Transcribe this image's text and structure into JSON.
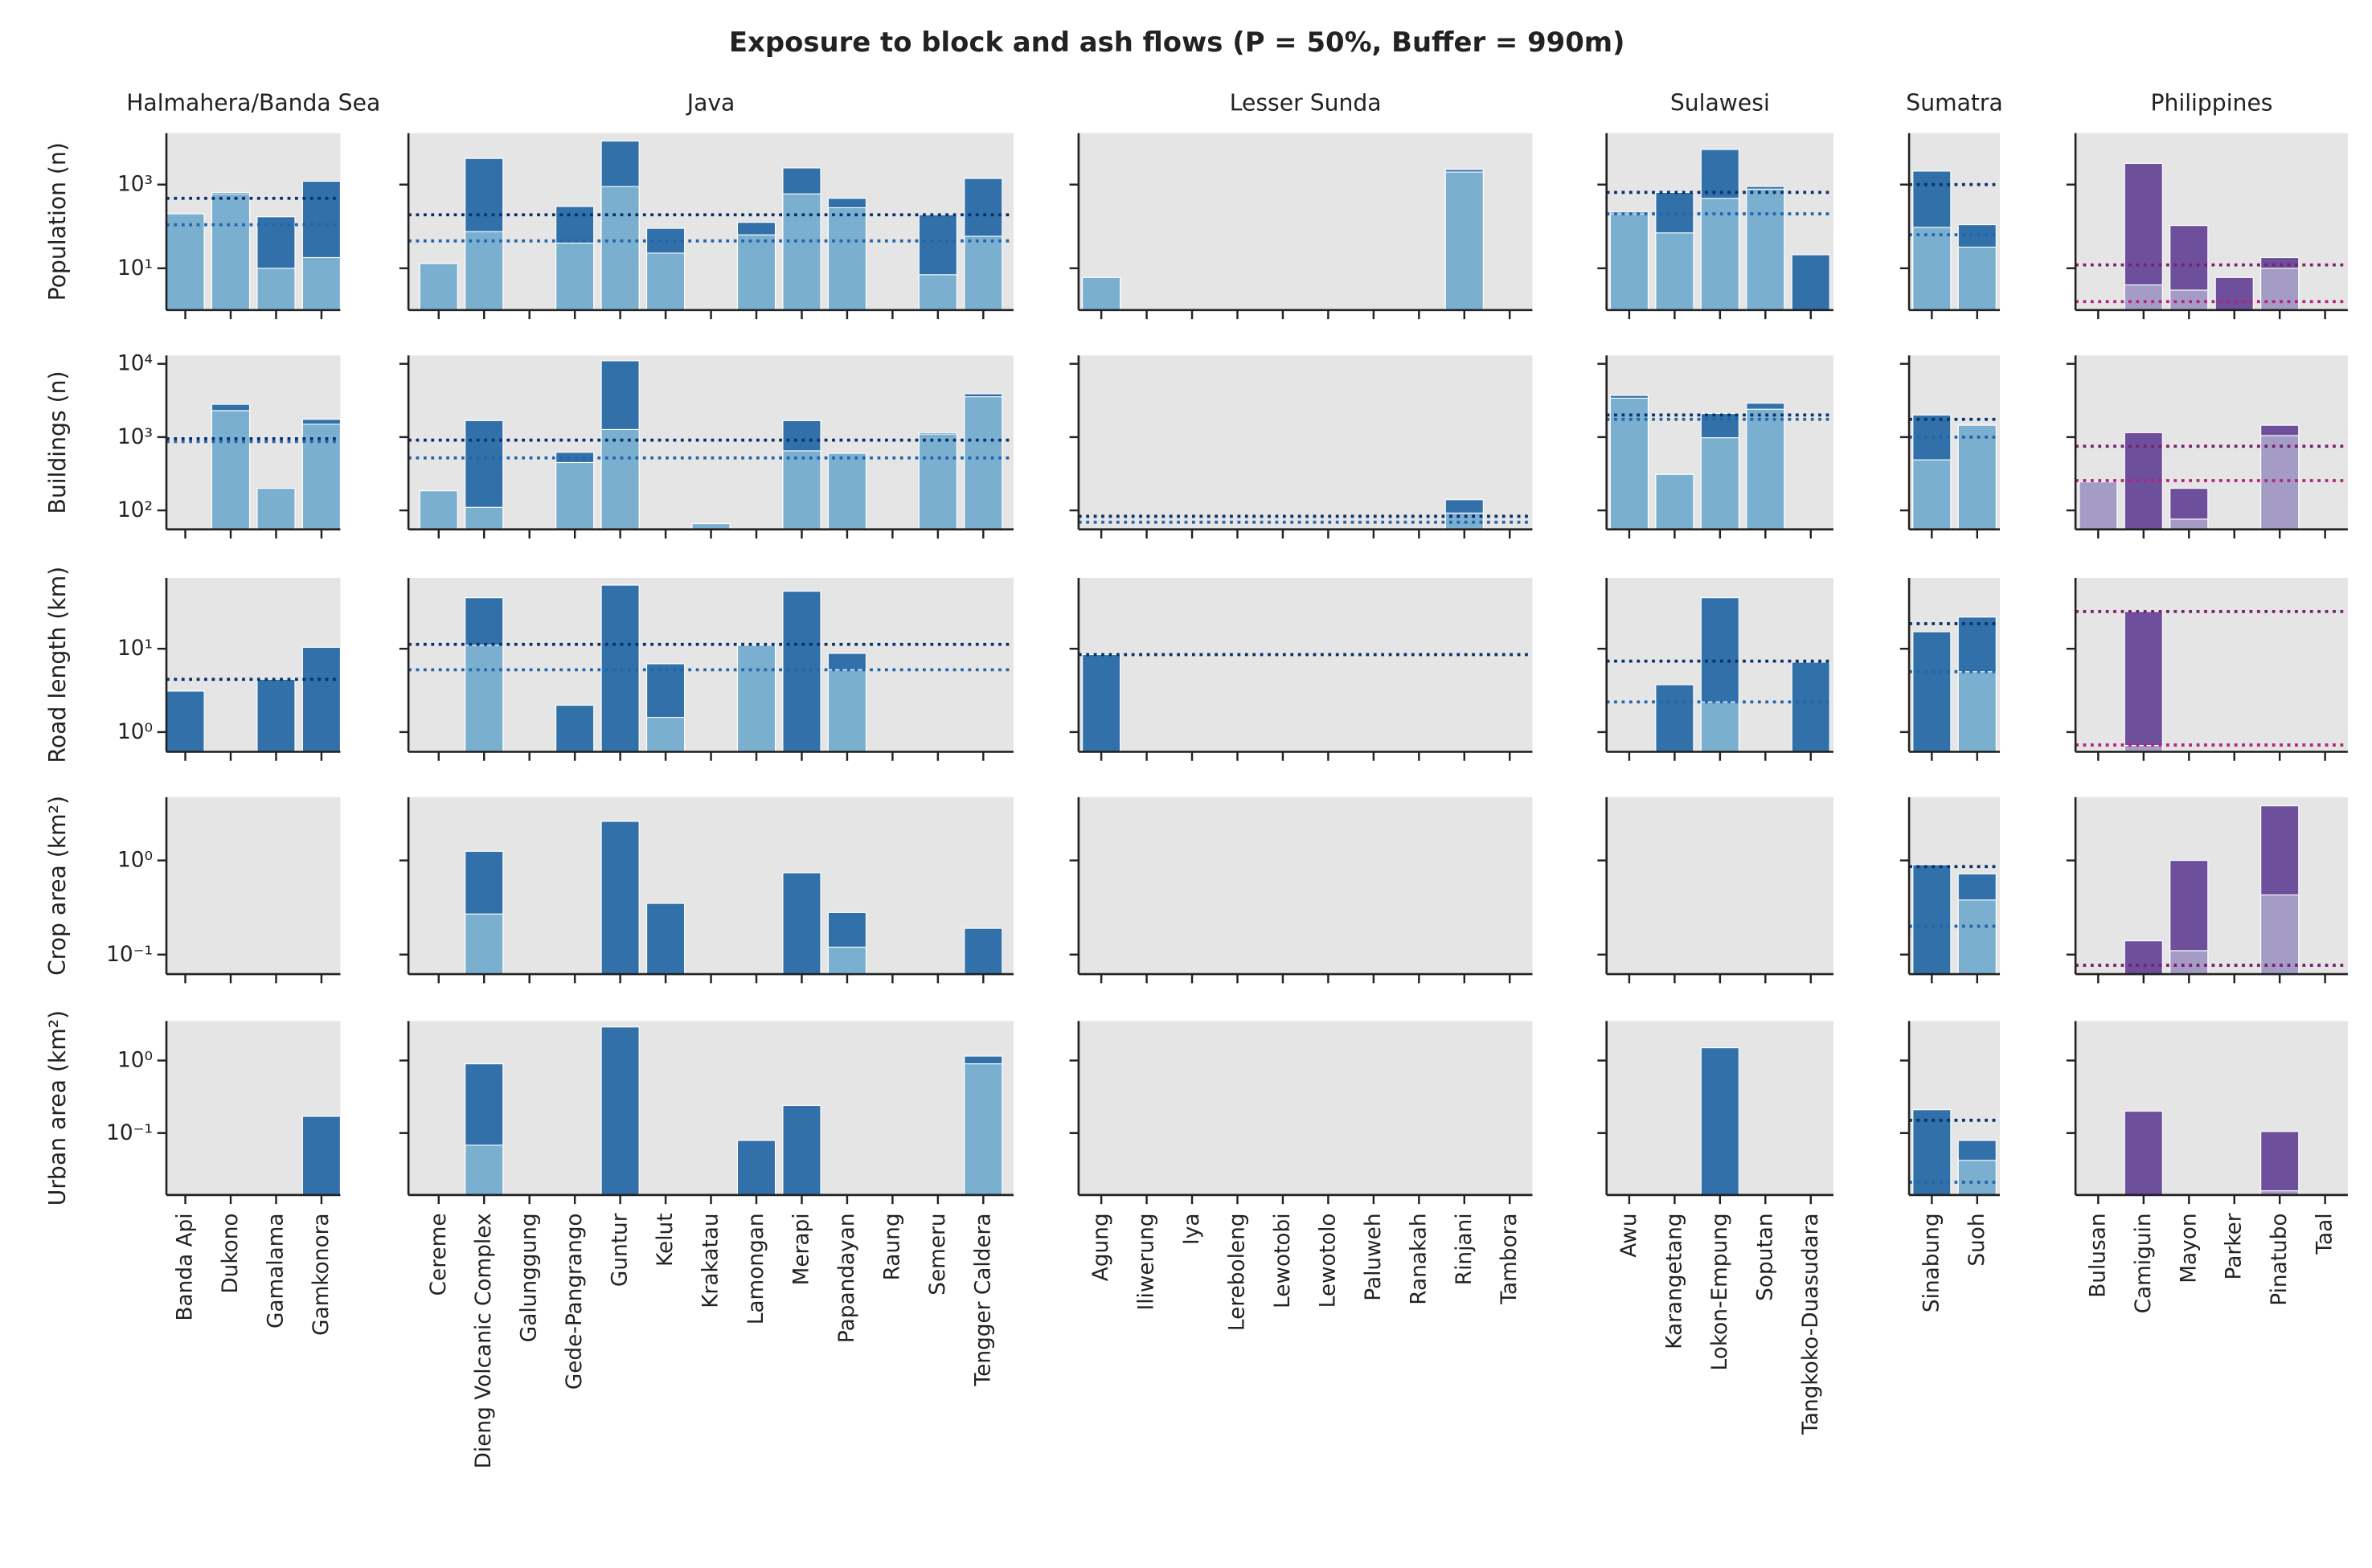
{
  "chart_data": {
    "type": "bar",
    "log_y": true,
    "title": "Exposure to block and ash flows (P = 50%, Buffer = 990m)",
    "groups": [
      {
        "name": "Halmahera/Banda Sea",
        "categories": [
          "Banda Api",
          "Dukono",
          "Gamalama",
          "Gamkonora"
        ],
        "bar_colors": [
          "#3170a9",
          "#7bafd0"
        ],
        "line_colors": [
          "#08306b",
          "#2166ac"
        ]
      },
      {
        "name": "Java",
        "categories": [
          "Cereme",
          "Dieng Volcanic Complex",
          "Galunggung",
          "Gede-Pangrango",
          "Guntur",
          "Kelut",
          "Krakatau",
          "Lamongan",
          "Merapi",
          "Papandayan",
          "Raung",
          "Semeru",
          "Tengger Caldera"
        ],
        "bar_colors": [
          "#3170a9",
          "#7bafd0"
        ],
        "line_colors": [
          "#08306b",
          "#2166ac"
        ]
      },
      {
        "name": "Lesser Sunda",
        "categories": [
          "Agung",
          "Iliwerung",
          "Iya",
          "Lereboleng",
          "Lewotobi",
          "Lewotolo",
          "Paluweh",
          "Ranakah",
          "Rinjani",
          "Tambora"
        ],
        "bar_colors": [
          "#3170a9",
          "#7bafd0"
        ],
        "line_colors": [
          "#08306b",
          "#2166ac"
        ]
      },
      {
        "name": "Sulawesi",
        "categories": [
          "Awu",
          "Karangetang",
          "Lokon-Empung",
          "Soputan",
          "Tangkoko-Duasudara"
        ],
        "bar_colors": [
          "#3170a9",
          "#7bafd0"
        ],
        "line_colors": [
          "#08306b",
          "#2166ac"
        ]
      },
      {
        "name": "Sumatra",
        "categories": [
          "Sinabung",
          "Suoh"
        ],
        "bar_colors": [
          "#3170a9",
          "#7bafd0"
        ],
        "line_colors": [
          "#08306b",
          "#2166ac"
        ]
      },
      {
        "name": "Philippines",
        "categories": [
          "Bulusan",
          "Camiguin",
          "Mayon",
          "Parker",
          "Pinatubo",
          "Taal"
        ],
        "bar_colors": [
          "#6d4f9c",
          "#a59cc6"
        ],
        "line_colors": [
          "#7b1f6e",
          "#b0237f"
        ]
      }
    ],
    "rows": [
      {
        "ylabel": "Population (n)",
        "ylim": [
          1,
          17000
        ],
        "yticks": [
          {
            "value": 10,
            "label": "10¹"
          },
          {
            "value": 1000,
            "label": "10³"
          }
        ],
        "panels": [
          {
            "values": [
              200,
              650,
              170,
              1200
            ],
            "subset": [
              200,
              600,
              10,
              18
            ],
            "hlines": [
              470,
              110
            ]
          },
          {
            "values": [
              13,
              4200,
              null,
              300,
              11000,
              90,
              null,
              125,
              2500,
              470,
              null,
              190,
              1400
            ],
            "subset": [
              13,
              75,
              null,
              40,
              900,
              23,
              null,
              63,
              600,
              280,
              null,
              7,
              58
            ],
            "hlines": [
              190,
              45
            ]
          },
          {
            "values": [
              6,
              null,
              null,
              null,
              null,
              null,
              null,
              null,
              2300,
              null
            ],
            "subset": [
              6,
              null,
              null,
              null,
              null,
              null,
              null,
              null,
              2000,
              null
            ],
            "hlines": []
          },
          {
            "values": [
              220,
              650,
              6900,
              900,
              21
            ],
            "subset": [
              200,
              70,
              470,
              780,
              null
            ],
            "hlines": [
              650,
              200
            ]
          },
          {
            "values": [
              2100,
              110
            ],
            "subset": [
              95,
              32
            ],
            "hlines": [
              1000,
              63
            ]
          },
          {
            "values": [
              null,
              3200,
              105,
              6,
              18,
              null
            ],
            "subset": [
              null,
              4,
              3,
              null,
              10,
              null
            ],
            "hlines": [
              12,
              1.6
            ]
          }
        ]
      },
      {
        "ylabel": "Buildings (n)",
        "ylim": [
          55,
          13000
        ],
        "yticks": [
          {
            "value": 100,
            "label": "10²"
          },
          {
            "value": 1000,
            "label": "10³"
          },
          {
            "value": 10000,
            "label": "10⁴"
          }
        ],
        "panels": [
          {
            "values": [
              null,
              2800,
              200,
              1750
            ],
            "subset": [
              null,
              2300,
              200,
              1500
            ],
            "hlines": [
              950,
              870
            ]
          },
          {
            "values": [
              185,
              1680,
              null,
              620,
              11000,
              null,
              66,
              null,
              1680,
              600,
              null,
              1150,
              3900
            ],
            "subset": [
              185,
              110,
              null,
              450,
              1270,
              null,
              66,
              null,
              650,
              600,
              null,
              1100,
              3550
            ],
            "hlines": [
              910,
              520
            ]
          },
          {
            "values": [
              null,
              null,
              null,
              null,
              null,
              null,
              null,
              null,
              140,
              null
            ],
            "subset": [
              null,
              null,
              null,
              null,
              null,
              null,
              null,
              null,
              92,
              null
            ],
            "hlines": [
              83,
              69
            ]
          },
          {
            "values": [
              3700,
              310,
              2100,
              2900,
              null
            ],
            "subset": [
              3400,
              310,
              980,
              2400,
              null
            ],
            "hlines": [
              2000,
              1750
            ]
          },
          {
            "values": [
              2000,
              1450
            ],
            "subset": [
              490,
              1450
            ],
            "hlines": [
              1750,
              1000
            ]
          },
          {
            "values": [
              245,
              1150,
              200,
              null,
              1450,
              null
            ],
            "subset": [
              245,
              null,
              76,
              null,
              1050,
              null
            ],
            "hlines": [
              750,
              255
            ]
          }
        ]
      },
      {
        "ylabel": "Road length (km)",
        "ylim": [
          0.58,
          71
        ],
        "yticks": [
          {
            "value": 1,
            "label": "10⁰"
          },
          {
            "value": 10,
            "label": "10¹"
          }
        ],
        "panels": [
          {
            "values": [
              3.1,
              null,
              4.3,
              10.4
            ],
            "subset": [
              null,
              null,
              null,
              null
            ],
            "hlines": [
              4.3
            ]
          },
          {
            "values": [
              null,
              41,
              null,
              2.1,
              58,
              6.6,
              null,
              11.3,
              49,
              8.8,
              null,
              null,
              null
            ],
            "subset": [
              null,
              11,
              null,
              null,
              null,
              1.5,
              null,
              11,
              null,
              5.6,
              null,
              null,
              null
            ],
            "hlines": [
              11.3,
              5.6
            ]
          },
          {
            "values": [
              8.5,
              null,
              null,
              null,
              null,
              null,
              null,
              null,
              null,
              null
            ],
            "subset": [
              null,
              null,
              null,
              null,
              null,
              null,
              null,
              null,
              null,
              null
            ],
            "hlines": [
              8.5
            ]
          },
          {
            "values": [
              null,
              3.7,
              41,
              null,
              6.9
            ],
            "subset": [
              null,
              null,
              2.3,
              null,
              null
            ],
            "hlines": [
              7.1,
              2.3
            ]
          },
          {
            "values": [
              16,
              24
            ],
            "subset": [
              null,
              5.3
            ],
            "hlines": [
              20,
              5.3
            ]
          },
          {
            "values": [
              null,
              28,
              null,
              null,
              null,
              null
            ],
            "subset": [
              null,
              0.69,
              null,
              null,
              null,
              null
            ],
            "hlines": [
              28,
              0.7
            ]
          }
        ]
      },
      {
        "ylabel": "Crop area (km²)",
        "ylim": [
          0.062,
          4.7
        ],
        "yticks": [
          {
            "value": 0.1,
            "label": "10⁻¹"
          },
          {
            "value": 1,
            "label": "10⁰"
          }
        ],
        "panels": [
          {
            "values": [
              null,
              null,
              null,
              null
            ],
            "subset": [
              null,
              null,
              null,
              null
            ],
            "hlines": []
          },
          {
            "values": [
              null,
              1.25,
              null,
              null,
              2.6,
              0.35,
              null,
              null,
              0.74,
              0.28,
              null,
              null,
              0.19
            ],
            "subset": [
              null,
              0.27,
              null,
              null,
              null,
              null,
              null,
              null,
              null,
              0.12,
              null,
              null,
              null
            ],
            "hlines": []
          },
          {
            "values": [
              null,
              null,
              null,
              null,
              null,
              null,
              null,
              null,
              null,
              null
            ],
            "subset": [
              null,
              null,
              null,
              null,
              null,
              null,
              null,
              null,
              null,
              null
            ],
            "hlines": []
          },
          {
            "values": [
              null,
              null,
              null,
              null,
              null
            ],
            "subset": [
              null,
              null,
              null,
              null,
              null
            ],
            "hlines": []
          },
          {
            "values": [
              0.9,
              0.72
            ],
            "subset": [
              null,
              0.38
            ],
            "hlines": [
              0.86,
              0.2
            ]
          },
          {
            "values": [
              null,
              0.14,
              1.0,
              null,
              3.8,
              null
            ],
            "subset": [
              null,
              null,
              0.11,
              null,
              0.43,
              null
            ],
            "hlines": [
              0.077
            ]
          }
        ]
      },
      {
        "ylabel": "Urban area (km²)",
        "ylim": [
          0.014,
          3.5
        ],
        "yticks": [
          {
            "value": 0.1,
            "label": "10⁻¹"
          },
          {
            "value": 1,
            "label": "10⁰"
          }
        ],
        "panels": [
          {
            "values": [
              null,
              null,
              null,
              0.17
            ],
            "subset": [
              null,
              null,
              null,
              null
            ],
            "hlines": []
          },
          {
            "values": [
              null,
              0.9,
              null,
              null,
              2.9,
              null,
              null,
              0.079,
              0.24,
              null,
              null,
              null,
              1.15
            ],
            "subset": [
              null,
              0.068,
              null,
              null,
              null,
              null,
              null,
              null,
              null,
              null,
              null,
              null,
              0.9
            ],
            "hlines": []
          },
          {
            "values": [
              null,
              null,
              null,
              null,
              null,
              null,
              null,
              null,
              null,
              null
            ],
            "subset": [
              null,
              null,
              null,
              null,
              null,
              null,
              null,
              null,
              null,
              null
            ],
            "hlines": []
          },
          {
            "values": [
              null,
              null,
              1.5,
              null,
              null
            ],
            "subset": [
              null,
              null,
              null,
              null,
              null
            ],
            "hlines": []
          },
          {
            "values": [
              0.21,
              0.079
            ],
            "subset": [
              null,
              0.042
            ],
            "hlines": [
              0.15,
              0.021
            ]
          },
          {
            "values": [
              null,
              0.2,
              null,
              null,
              0.105,
              null
            ],
            "subset": [
              null,
              null,
              null,
              null,
              0.016,
              null
            ],
            "hlines": []
          }
        ]
      }
    ]
  }
}
